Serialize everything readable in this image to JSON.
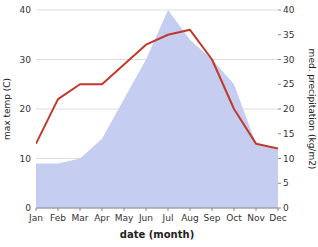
{
  "chart_data": {
    "type": "line",
    "x_label": "date (month)",
    "y_label": "max temp (C)",
    "y2_label": "med. precipitation (kg/m2)",
    "categories": [
      "Jan",
      "Feb",
      "Mar",
      "Apr",
      "May",
      "Jun",
      "Jul",
      "Aug",
      "Sep",
      "Oct",
      "Nov",
      "Dec"
    ],
    "series": [
      {
        "type": "line",
        "color": "#c0392b",
        "values": [
          13,
          22,
          25,
          25,
          29,
          33,
          35,
          36,
          30,
          20,
          13,
          12
        ]
      },
      {
        "type": "area",
        "axis": "y2",
        "color": "#c5cef0",
        "values": [
          9,
          9,
          10,
          14,
          22,
          30,
          40,
          34,
          30,
          25,
          13,
          12
        ]
      }
    ],
    "ylim": [
      0,
      40
    ],
    "yticks": [
      0,
      10,
      20,
      30,
      40
    ],
    "y2lim": [
      0,
      40
    ],
    "y2ticks": [
      0,
      5,
      10,
      15,
      20,
      25,
      30,
      35,
      40
    ],
    "grid": true
  }
}
